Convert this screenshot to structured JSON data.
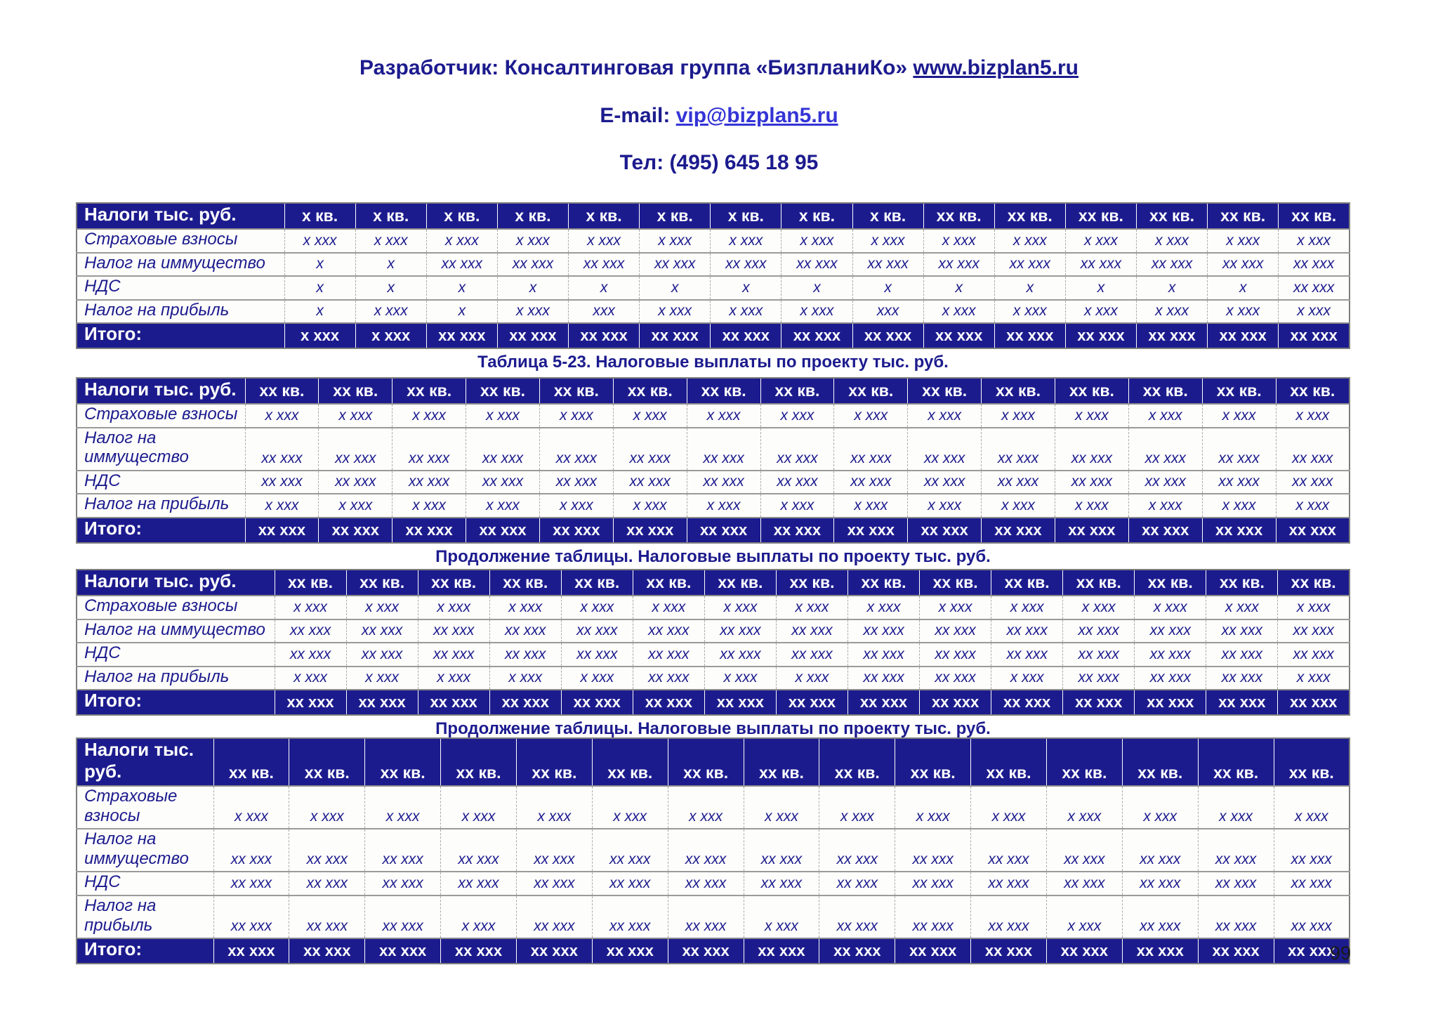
{
  "header": {
    "developer_prefix": "Разработчик: Консалтинговая группа «БизпланиКо» ",
    "developer_link": "www.bizplan5.ru",
    "email_prefix": "E-mail: ",
    "email_link": "vip@bizplan5.ru",
    "phone": "Тел: (495) 645 18 95"
  },
  "page_number": "99",
  "colors": {
    "navy": "#1c1b8e",
    "header_bg": "#1c1b8e",
    "email_link_blue": "#3434d6",
    "table_border_gray": "#7d7d7d"
  },
  "tables": [
    {
      "label_header": "Налоги тыс. руб.",
      "columns": [
        "х кв.",
        "х кв.",
        "х кв.",
        "х кв.",
        "х кв.",
        "х кв.",
        "х кв.",
        "х кв.",
        "х кв.",
        "хх кв.",
        "хх кв.",
        "хх кв.",
        "хх кв.",
        "хх кв.",
        "хх кв."
      ],
      "rows": [
        {
          "label": "Страховые взносы",
          "cells": [
            "х ххх",
            "х ххх",
            "х ххх",
            "х ххх",
            "х ххх",
            "х ххх",
            "х ххх",
            "х ххх",
            "х ххх",
            "х ххх",
            "х ххх",
            "х ххх",
            "х ххх",
            "х ххх",
            "х ххх"
          ]
        },
        {
          "label": "Налог на иммущество",
          "cells": [
            "х",
            "х",
            "хх ххх",
            "хх ххх",
            "хх ххх",
            "хх ххх",
            "хх ххх",
            "хх ххх",
            "хх ххх",
            "хх ххх",
            "хх ххх",
            "хх ххх",
            "хх ххх",
            "хх ххх",
            "хх ххх"
          ]
        },
        {
          "label": "НДС",
          "cells": [
            "х",
            "х",
            "х",
            "х",
            "х",
            "х",
            "х",
            "х",
            "х",
            "х",
            "х",
            "х",
            "х",
            "х",
            "хх ххх"
          ]
        },
        {
          "label": "Налог на прибыль",
          "cells": [
            "х",
            "х ххх",
            "х",
            "х ххх",
            "ххх",
            "х ххх",
            "х ххх",
            "х ххх",
            "ххх",
            "х ххх",
            "х ххх",
            "х ххх",
            "х ххх",
            "х ххх",
            "х ххх"
          ]
        }
      ],
      "total": {
        "label": "Итого:",
        "cells": [
          "х ххх",
          "х ххх",
          "хх ххх",
          "хх ххх",
          "хх ххх",
          "хх ххх",
          "хх ххх",
          "хх ххх",
          "хх ххх",
          "хх ххх",
          "хх ххх",
          "хх ххх",
          "хх ххх",
          "хх ххх",
          "хх ххх"
        ]
      },
      "caption": "Таблица 5-23. Налоговые выплаты по проекту тыс. руб."
    },
    {
      "label_header": "Налоги тыс. руб.",
      "columns": [
        "хх кв.",
        "хх кв.",
        "хх кв.",
        "хх кв.",
        "хх кв.",
        "хх кв.",
        "хх кв.",
        "хх кв.",
        "хх кв.",
        "хх кв.",
        "хх кв.",
        "хх кв.",
        "хх кв.",
        "хх кв.",
        "хх кв."
      ],
      "rows": [
        {
          "label": "Страховые взносы",
          "cells": [
            "х ххх",
            "х ххх",
            "х ххх",
            "х ххх",
            "х ххх",
            "х ххх",
            "х ххх",
            "х ххх",
            "х ххх",
            "х ххх",
            "х ххх",
            "х ххх",
            "х ххх",
            "х ххх",
            "х ххх"
          ]
        },
        {
          "label": "Налог на иммущество",
          "cells": [
            "хх ххх",
            "хх ххх",
            "хх ххх",
            "хх ххх",
            "хх ххх",
            "хх ххх",
            "хх ххх",
            "хх ххх",
            "хх ххх",
            "хх ххх",
            "хх ххх",
            "хх ххх",
            "хх ххх",
            "хх ххх",
            "хх ххх"
          ]
        },
        {
          "label": "НДС",
          "cells": [
            "хх ххх",
            "хх ххх",
            "хх ххх",
            "хх ххх",
            "хх ххх",
            "хх ххх",
            "хх ххх",
            "хх ххх",
            "хх ххх",
            "хх ххх",
            "хх ххх",
            "хх ххх",
            "хх ххх",
            "хх ххх",
            "хх ххх"
          ]
        },
        {
          "label": "Налог на прибыль",
          "cells": [
            "х ххх",
            "х ххх",
            "х ххх",
            "х ххх",
            "х ххх",
            "х ххх",
            "х ххх",
            "х ххх",
            "х ххх",
            "х ххх",
            "х ххх",
            "х ххх",
            "х ххх",
            "х ххх",
            "х ххх"
          ]
        }
      ],
      "total": {
        "label": "Итого:",
        "cells": [
          "хх ххх",
          "хх ххх",
          "хх ххх",
          "хх ххх",
          "хх ххх",
          "хх ххх",
          "хх ххх",
          "хх ххх",
          "хх ххх",
          "хх ххх",
          "хх ххх",
          "хх ххх",
          "хх ххх",
          "хх ххх",
          "хх ххх"
        ]
      },
      "caption": "Продолжение таблицы. Налоговые выплаты по проекту тыс. руб."
    },
    {
      "label_header": "Налоги тыс. руб.",
      "columns": [
        "хх кв.",
        "хх кв.",
        "хх кв.",
        "хх кв.",
        "хх кв.",
        "хх кв.",
        "хх кв.",
        "хх кв.",
        "хх кв.",
        "хх кв.",
        "хх кв.",
        "хх кв.",
        "хх кв.",
        "хх кв.",
        "хх кв."
      ],
      "rows": [
        {
          "label": "Страховые взносы",
          "cells": [
            "х ххх",
            "х ххх",
            "х ххх",
            "х ххх",
            "х ххх",
            "х ххх",
            "х ххх",
            "х ххх",
            "х ххх",
            "х ххх",
            "х ххх",
            "х ххх",
            "х ххх",
            "х ххх",
            "х ххх"
          ]
        },
        {
          "label": "Налог на иммущество",
          "cells": [
            "хх ххх",
            "хх ххх",
            "хх ххх",
            "хх ххх",
            "хх ххх",
            "хх ххх",
            "хх ххх",
            "хх ххх",
            "хх ххх",
            "хх ххх",
            "хх ххх",
            "хх ххх",
            "хх ххх",
            "хх ххх",
            "хх ххх"
          ]
        },
        {
          "label": "НДС",
          "cells": [
            "хх ххх",
            "хх ххх",
            "хх ххх",
            "хх ххх",
            "хх ххх",
            "хх ххх",
            "хх ххх",
            "хх ххх",
            "хх ххх",
            "хх ххх",
            "хх ххх",
            "хх ххх",
            "хх ххх",
            "хх ххх",
            "хх ххх"
          ]
        },
        {
          "label": "Налог на прибыль",
          "cells": [
            "х ххх",
            "х ххх",
            "х ххх",
            "х ххх",
            "х ххх",
            "хх ххх",
            "х ххх",
            "х ххх",
            "хх ххх",
            "хх ххх",
            "х ххх",
            "хх ххх",
            "хх ххх",
            "хх ххх",
            "х ххх"
          ]
        }
      ],
      "total": {
        "label": "Итого:",
        "cells": [
          "хх ххх",
          "хх ххх",
          "хх ххх",
          "хх ххх",
          "хх ххх",
          "хх ххх",
          "хх ххх",
          "хх ххх",
          "хх ххх",
          "хх ххх",
          "хх ххх",
          "хх ххх",
          "хх ххх",
          "хх ххх",
          "хх ххх"
        ]
      },
      "caption": "Продолжение таблицы. Налоговые выплаты по проекту тыс. руб."
    },
    {
      "label_header": "Налоги тыс. руб.",
      "columns": [
        "хх кв.",
        "хх кв.",
        "хх кв.",
        "хх кв.",
        "хх кв.",
        "хх кв.",
        "хх кв.",
        "хх кв.",
        "хх кв.",
        "хх кв.",
        "хх кв.",
        "хх кв.",
        "хх кв.",
        "хх кв.",
        "хх кв."
      ],
      "rows": [
        {
          "label": "Страховые взносы",
          "cells": [
            "х ххх",
            "х ххх",
            "х ххх",
            "х ххх",
            "х ххх",
            "х ххх",
            "х ххх",
            "х ххх",
            "х ххх",
            "х ххх",
            "х ххх",
            "х ххх",
            "х ххх",
            "х ххх",
            "х ххх"
          ]
        },
        {
          "label": "Налог на иммущество",
          "cells": [
            "хх ххх",
            "хх ххх",
            "хх ххх",
            "хх ххх",
            "хх ххх",
            "хх ххх",
            "хх ххх",
            "хх ххх",
            "хх ххх",
            "хх ххх",
            "хх ххх",
            "хх ххх",
            "хх ххх",
            "хх ххх",
            "хх ххх"
          ]
        },
        {
          "label": "НДС",
          "cells": [
            "хх ххх",
            "хх ххх",
            "хх ххх",
            "хх ххх",
            "хх ххх",
            "хх ххх",
            "хх ххх",
            "хх ххх",
            "хх ххх",
            "хх ххх",
            "хх ххх",
            "хх ххх",
            "хх ххх",
            "хх ххх",
            "хх ххх"
          ]
        },
        {
          "label": "Налог на прибыль",
          "cells": [
            "хх ххх",
            "хх ххх",
            "хх ххх",
            "х ххх",
            "хх ххх",
            "хх ххх",
            "хх ххх",
            "х ххх",
            "хх ххх",
            "хх ххх",
            "хх ххх",
            "х ххх",
            "хх ххх",
            "хх ххх",
            "хх ххх"
          ]
        }
      ],
      "total": {
        "label": "Итого:",
        "cells": [
          "хх ххх",
          "хх ххх",
          "хх ххх",
          "хх ххх",
          "хх ххх",
          "хх ххх",
          "хх ххх",
          "хх ххх",
          "хх ххх",
          "хх ххх",
          "хх ххх",
          "хх ххх",
          "хх ххх",
          "хх ххх",
          "хх ххх"
        ]
      },
      "caption": null
    }
  ]
}
